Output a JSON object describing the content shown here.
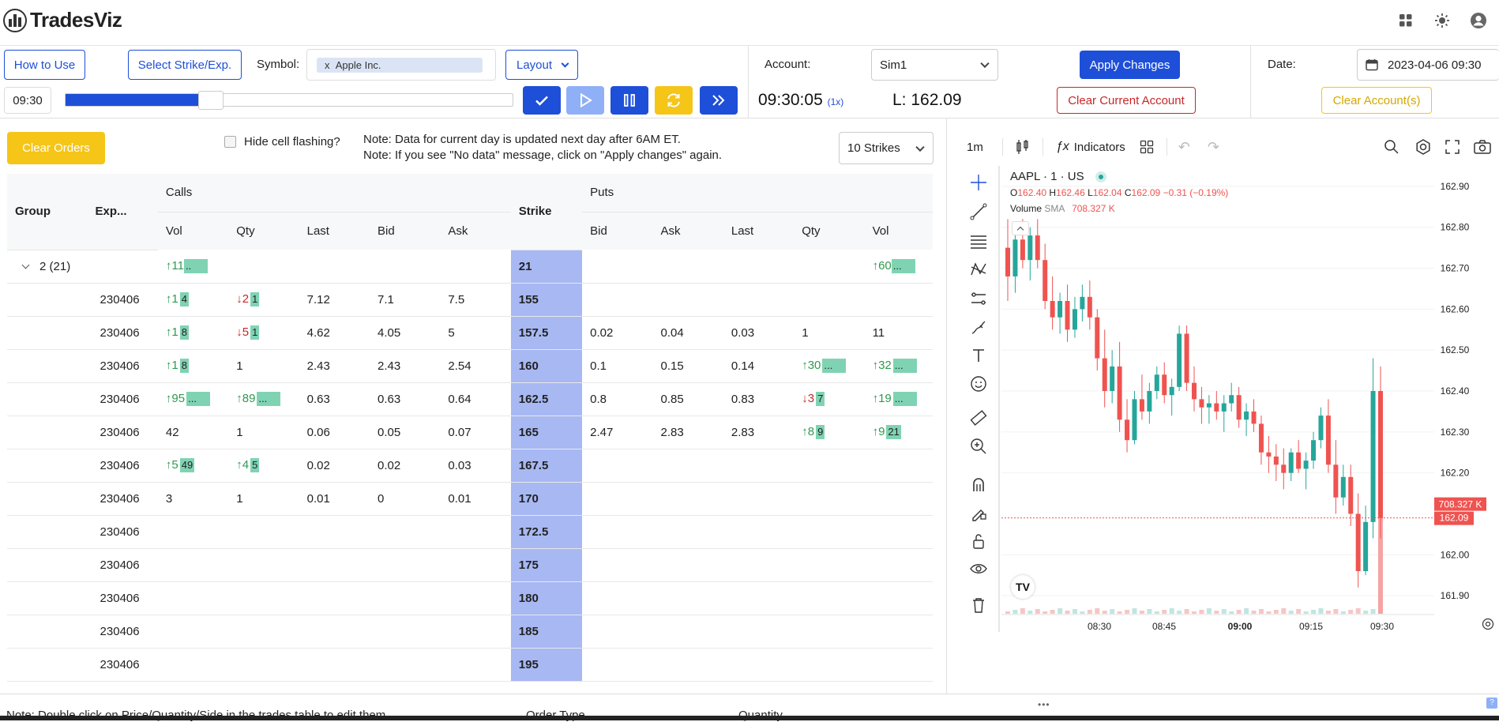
{
  "app": {
    "logo_text": "TradesViz"
  },
  "controls": {
    "how_to_use": "How to Use",
    "select_strike": "Select Strike/Exp.",
    "symbol_label": "Symbol:",
    "symbol_chip_x": "x",
    "symbol_value": "Apple Inc.",
    "layout_label": "Layout",
    "time_value": "09:30",
    "progress_pct": 30,
    "account_label": "Account:",
    "account_value": "Sim1",
    "apply_changes": "Apply Changes",
    "date_label": "Date:",
    "date_value": "2023-04-06 09:30",
    "clock": "09:30:05",
    "speed": "(1x)",
    "last_price": "L: 162.09",
    "clear_current_account": "Clear Current Account",
    "clear_accounts": "Clear Account(s)"
  },
  "options": {
    "clear_orders": "Clear Orders",
    "hide_flashing": "Hide cell flashing?",
    "note1": "Note: Data for current day is updated next day after 6AM ET.",
    "note2": "Note: If you see \"No data\" message, click on \"Apply changes\" again.",
    "strikes_select": "10 Strikes",
    "headers": {
      "group": "Group",
      "exp": "Exp...",
      "calls": "Calls",
      "strike": "Strike",
      "puts": "Puts",
      "vol": "Vol",
      "qty": "Qty",
      "last": "Last",
      "bid": "Bid",
      "ask": "Ask"
    },
    "group_row": {
      "label": "2 (21)",
      "call_vol_arrow": "↑",
      "call_vol": "11",
      "call_vol_bar": "..",
      "strike": "21",
      "put_vol_arrow": "↑",
      "put_vol": "60",
      "put_vol_bar": "..."
    },
    "rows": [
      {
        "exp": "230406",
        "cv": "↑1",
        "cvb": "4",
        "cq": "↓2",
        "cqb": "1",
        "cl": "7.12",
        "cb": "7.1",
        "ca": "7.5",
        "strike": "155",
        "pb": "",
        "pa": "",
        "pl": "",
        "pq": "",
        "pqb": "",
        "pv": "",
        "pvb": ""
      },
      {
        "exp": "230406",
        "cv": "↑1",
        "cvb": "8",
        "cq": "↓5",
        "cqb": "1",
        "cl": "4.62",
        "cb": "4.05",
        "ca": "5",
        "strike": "157.5",
        "pb": "0.02",
        "pa": "0.04",
        "pl": "0.03",
        "pq": "1",
        "pqb": "",
        "pv": "11",
        "pvb": ""
      },
      {
        "exp": "230406",
        "cv": "↑1",
        "cvb": "8",
        "cq": "1",
        "cqb": "",
        "cl": "2.43",
        "cb": "2.43",
        "ca": "2.54",
        "strike": "160",
        "pb": "0.1",
        "pa": "0.15",
        "pl": "0.14",
        "pq": "↑30",
        "pqb": "...",
        "pv": "↑32",
        "pvb": "..."
      },
      {
        "exp": "230406",
        "cv": "↑95",
        "cvb": "...",
        "cq": "↑89",
        "cqb": "...",
        "cl": "0.63",
        "cb": "0.63",
        "ca": "0.64",
        "strike": "162.5",
        "pb": "0.8",
        "pa": "0.85",
        "pl": "0.83",
        "pq": "↓3",
        "pqb": "7",
        "pv": "↑19",
        "pvb": "..."
      },
      {
        "exp": "230406",
        "cv": "42",
        "cvb": "",
        "cq": "1",
        "cqb": "",
        "cl": "0.06",
        "cb": "0.05",
        "ca": "0.07",
        "strike": "165",
        "pb": "2.47",
        "pa": "2.83",
        "pl": "2.83",
        "pq": "↑8",
        "pqb": "9",
        "pv": "↑9",
        "pvb": "21"
      },
      {
        "exp": "230406",
        "cv": "↑5",
        "cvb": "49",
        "cq": "↑4",
        "cqb": "5",
        "cl": "0.02",
        "cb": "0.02",
        "ca": "0.03",
        "strike": "167.5",
        "pb": "",
        "pa": "",
        "pl": "",
        "pq": "",
        "pqb": "",
        "pv": "",
        "pvb": ""
      },
      {
        "exp": "230406",
        "cv": "3",
        "cvb": "",
        "cq": "1",
        "cqb": "",
        "cl": "0.01",
        "cb": "0",
        "ca": "0.01",
        "strike": "170",
        "pb": "",
        "pa": "",
        "pl": "",
        "pq": "",
        "pqb": "",
        "pv": "",
        "pvb": ""
      },
      {
        "exp": "230406",
        "cv": "",
        "cvb": "",
        "cq": "",
        "cqb": "",
        "cl": "",
        "cb": "",
        "ca": "",
        "strike": "172.5",
        "pb": "",
        "pa": "",
        "pl": "",
        "pq": "",
        "pqb": "",
        "pv": "",
        "pvb": ""
      },
      {
        "exp": "230406",
        "cv": "",
        "cvb": "",
        "cq": "",
        "cqb": "",
        "cl": "",
        "cb": "",
        "ca": "",
        "strike": "175",
        "pb": "",
        "pa": "",
        "pl": "",
        "pq": "",
        "pqb": "",
        "pv": "",
        "pvb": ""
      },
      {
        "exp": "230406",
        "cv": "",
        "cvb": "",
        "cq": "",
        "cqb": "",
        "cl": "",
        "cb": "",
        "ca": "",
        "strike": "180",
        "pb": "",
        "pa": "",
        "pl": "",
        "pq": "",
        "pqb": "",
        "pv": "",
        "pvb": ""
      },
      {
        "exp": "230406",
        "cv": "",
        "cvb": "",
        "cq": "",
        "cqb": "",
        "cl": "",
        "cb": "",
        "ca": "",
        "strike": "185",
        "pb": "",
        "pa": "",
        "pl": "",
        "pq": "",
        "pqb": "",
        "pv": "",
        "pvb": ""
      },
      {
        "exp": "230406",
        "cv": "",
        "cvb": "",
        "cq": "",
        "cqb": "",
        "cl": "",
        "cb": "",
        "ca": "",
        "strike": "195",
        "pb": "",
        "pa": "",
        "pl": "",
        "pq": "",
        "pqb": "",
        "pv": "",
        "pvb": ""
      }
    ]
  },
  "chart": {
    "interval": "1m",
    "indicators": "Indicators",
    "symbol_title": "AAPL · 1 · US",
    "ohlc": {
      "o_label": "O",
      "o": "162.40",
      "h_label": "H",
      "h": "162.46",
      "l_label": "L",
      "l": "162.04",
      "c_label": "C",
      "c": "162.09",
      "chg": "−0.31 (−0.19%)"
    },
    "volume_label": "Volume",
    "sma_label": "SMA",
    "volume_value": "708.327 K",
    "y_ticks": [
      "162.90",
      "162.80",
      "162.70",
      "162.60",
      "162.50",
      "162.40",
      "162.30",
      "162.20",
      "162.00",
      "161.90"
    ],
    "x_ticks": [
      "08:30",
      "08:45",
      "09:00",
      "09:15",
      "09:30"
    ],
    "price_tag": "162.09",
    "vol_tag": "708.327 K",
    "colors": {
      "up": "#26a69a",
      "down": "#ef5350"
    }
  },
  "bottom": {
    "note": "Note: Double click on Price/Quantity/Side in the trades table to edit them",
    "order_type": "Order Type",
    "quantity": "Quantity"
  },
  "chart_data": {
    "type": "candlestick",
    "title": "AAPL · 1 · US",
    "ylim": [
      161.85,
      162.95
    ],
    "x_ticks": [
      "08:30",
      "08:45",
      "09:00",
      "09:15",
      "09:30"
    ],
    "x_range_minutes": [
      510,
      570
    ],
    "candles": [
      [
        162.75,
        162.82,
        162.62,
        162.68
      ],
      [
        162.68,
        162.8,
        162.64,
        162.77
      ],
      [
        162.77,
        162.82,
        162.7,
        162.72
      ],
      [
        162.72,
        162.8,
        162.67,
        162.78
      ],
      [
        162.78,
        162.82,
        162.7,
        162.72
      ],
      [
        162.72,
        162.76,
        162.6,
        162.62
      ],
      [
        162.62,
        162.68,
        162.55,
        162.58
      ],
      [
        162.58,
        162.64,
        162.54,
        162.62
      ],
      [
        162.62,
        162.66,
        162.52,
        162.55
      ],
      [
        162.55,
        162.63,
        162.53,
        162.6
      ],
      [
        162.6,
        162.66,
        162.57,
        162.63
      ],
      [
        162.63,
        162.67,
        162.55,
        162.58
      ],
      [
        162.58,
        162.6,
        162.45,
        162.48
      ],
      [
        162.48,
        162.55,
        162.36,
        162.4
      ],
      [
        162.4,
        162.5,
        162.37,
        162.46
      ],
      [
        162.46,
        162.52,
        162.3,
        162.33
      ],
      [
        162.33,
        162.38,
        162.25,
        162.28
      ],
      [
        162.28,
        162.4,
        162.27,
        162.38
      ],
      [
        162.38,
        162.44,
        162.33,
        162.35
      ],
      [
        162.35,
        162.42,
        162.32,
        162.4
      ],
      [
        162.4,
        162.46,
        162.38,
        162.44
      ],
      [
        162.44,
        162.47,
        162.37,
        162.39
      ],
      [
        162.39,
        162.43,
        162.34,
        162.41
      ],
      [
        162.41,
        162.56,
        162.4,
        162.54
      ],
      [
        162.54,
        162.56,
        162.4,
        162.42
      ],
      [
        162.42,
        162.46,
        162.35,
        162.38
      ],
      [
        162.38,
        162.41,
        162.32,
        162.36
      ],
      [
        162.36,
        162.39,
        162.32,
        162.37
      ],
      [
        162.37,
        162.4,
        162.33,
        162.35
      ],
      [
        162.35,
        162.39,
        162.3,
        162.37
      ],
      [
        162.37,
        162.42,
        162.35,
        162.39
      ],
      [
        162.39,
        162.41,
        162.31,
        162.33
      ],
      [
        162.33,
        162.37,
        162.29,
        162.35
      ],
      [
        162.35,
        162.38,
        162.3,
        162.32
      ],
      [
        162.32,
        162.34,
        162.22,
        162.25
      ],
      [
        162.25,
        162.29,
        162.2,
        162.24
      ],
      [
        162.24,
        162.27,
        162.18,
        162.22
      ],
      [
        162.22,
        162.26,
        162.16,
        162.2
      ],
      [
        162.2,
        162.26,
        162.18,
        162.25
      ],
      [
        162.25,
        162.28,
        162.2,
        162.21
      ],
      [
        162.21,
        162.25,
        162.16,
        162.23
      ],
      [
        162.23,
        162.3,
        162.21,
        162.28
      ],
      [
        162.28,
        162.36,
        162.26,
        162.34
      ],
      [
        162.34,
        162.38,
        162.2,
        162.22
      ],
      [
        162.22,
        162.28,
        162.1,
        162.14
      ],
      [
        162.14,
        162.22,
        162.12,
        162.19
      ],
      [
        162.19,
        162.22,
        162.07,
        162.1
      ],
      [
        162.1,
        162.15,
        161.92,
        161.96
      ],
      [
        161.96,
        162.12,
        161.95,
        162.08
      ],
      [
        162.08,
        162.48,
        162.04,
        162.4
      ],
      [
        162.4,
        162.46,
        162.04,
        162.09
      ]
    ]
  }
}
